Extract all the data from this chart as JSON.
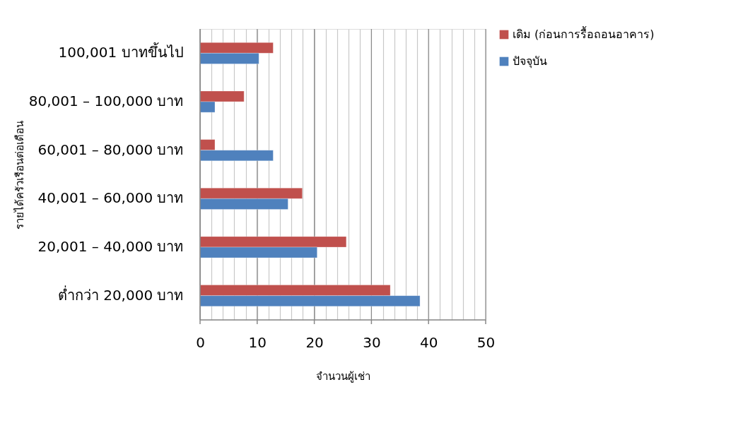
{
  "chart_data": {
    "type": "bar",
    "orientation": "horizontal",
    "xlabel": "จำนวนผู้เช่า",
    "ylabel": "รายได้ครัวเรือนต่อเดือน",
    "categories": [
      "100,001 บาทขึ้นไป",
      "80,001 – 100,000 บาท",
      "60,001 – 80,000 บาท",
      "40,001 – 60,000 บาท",
      "20,001 – 40,000 บาท",
      "ต่ำกว่า 20,000 บาท"
    ],
    "series": [
      {
        "name": "เดิม (ก่อนการรื้อถอนอาคาร)",
        "color": "#c0504d",
        "values": [
          12.8,
          7.7,
          2.6,
          17.9,
          25.6,
          33.3
        ]
      },
      {
        "name": "ปัจจุบัน",
        "color": "#4f81bd",
        "values": [
          10.3,
          2.6,
          12.8,
          15.4,
          20.5,
          38.5
        ]
      }
    ],
    "xlim": [
      0,
      50
    ],
    "xticks": [
      0,
      {
        "value": 2,
        "label": null
      },
      {
        "value": 4,
        "label": null
      },
      {
        "value": 6,
        "label": null
      },
      {
        "value": 8,
        "label": null
      },
      10,
      {
        "value": 12,
        "label": null
      },
      {
        "value": 14,
        "label": null
      },
      {
        "value": 16,
        "label": null
      },
      {
        "value": 18,
        "label": null
      },
      20,
      {
        "value": 22,
        "label": null
      },
      {
        "value": 24,
        "label": null
      },
      {
        "value": 26,
        "label": null
      },
      {
        "value": 28,
        "label": null
      },
      30,
      {
        "value": 32,
        "label": null
      },
      {
        "value": 34,
        "label": null
      },
      {
        "value": 36,
        "label": null
      },
      {
        "value": 38,
        "label": null
      },
      40,
      {
        "value": 42,
        "label": null
      },
      {
        "value": 44,
        "label": null
      },
      {
        "value": 46,
        "label": null
      },
      {
        "value": 48,
        "label": null
      },
      50
    ],
    "grid": "x",
    "legend": "right"
  }
}
